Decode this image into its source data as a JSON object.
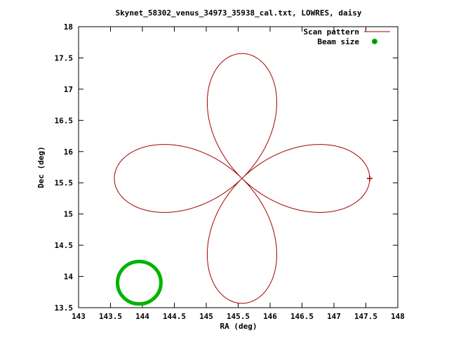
{
  "title": "Skynet_58302_venus_34973_35938_cal.txt, LOWRES, daisy",
  "colors": {
    "scan": "#a40000",
    "beam": "#00b400",
    "axis": "#000000",
    "background": "#ffffff"
  },
  "chart_data": {
    "type": "line",
    "title": "Skynet_58302_venus_34973_35938_cal.txt, LOWRES, daisy",
    "xlabel": "RA (deg)",
    "ylabel": "Dec (deg)",
    "xlim": [
      143,
      148
    ],
    "ylim": [
      13.5,
      18
    ],
    "xticks": [
      "143",
      "143.5",
      "144",
      "144.5",
      "145",
      "145.5",
      "146",
      "146.5",
      "147",
      "147.5",
      "148"
    ],
    "yticks": [
      "13.5",
      "14",
      "14.5",
      "15",
      "15.5",
      "16",
      "16.5",
      "17",
      "17.5",
      "18"
    ],
    "grid": false,
    "legend_position": "top-right-inside",
    "series": [
      {
        "name": "Scan pattern",
        "type": "rose_curve",
        "petals": 4,
        "center_ra": 145.56,
        "center_dec": 15.57,
        "petal_length_deg": 2.0,
        "color": "#a40000",
        "end_marker_ra": 147.56,
        "end_marker_dec": 15.57
      },
      {
        "name": "Beam size",
        "type": "circle_marker",
        "center_ra": 143.95,
        "center_dec": 13.9,
        "radius_deg": 0.34,
        "color": "#00b400"
      }
    ]
  }
}
